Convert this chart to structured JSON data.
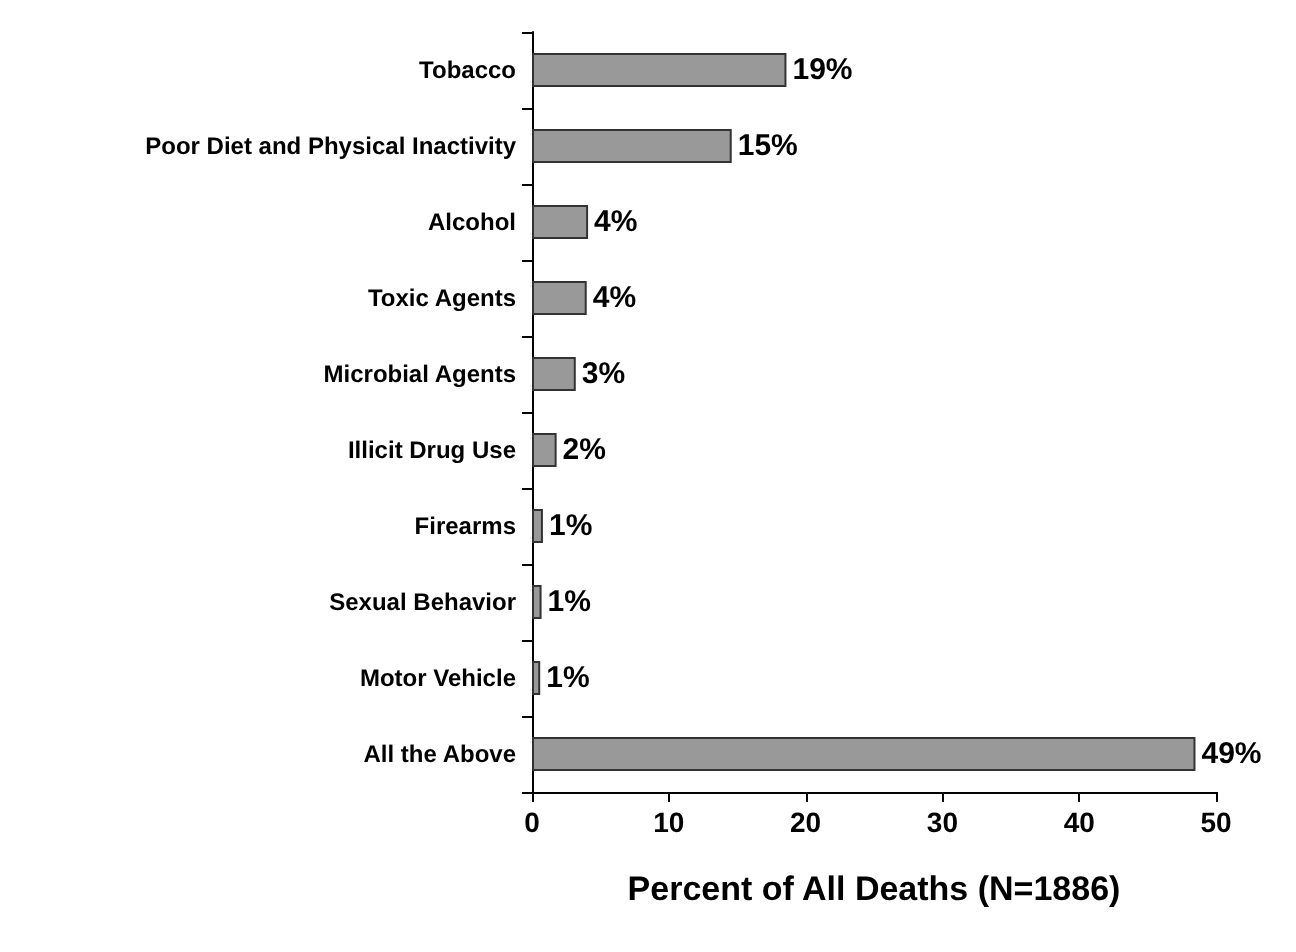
{
  "chart_data": {
    "type": "bar",
    "orientation": "horizontal",
    "xlabel": "Percent of All Deaths (N=1886)",
    "categories": [
      "Tobacco",
      "Poor Diet and Physical Inactivity",
      "Alcohol",
      "Toxic Agents",
      "Microbial Agents",
      "Illicit Drug Use",
      "Firearms",
      "Sexual Behavior",
      "Motor Vehicle",
      "All the Above"
    ],
    "values": [
      18.6,
      14.6,
      4.1,
      4.0,
      3.2,
      1.8,
      0.8,
      0.7,
      0.6,
      48.5
    ],
    "value_labels": [
      "19%",
      "15%",
      "4%",
      "4%",
      "3%",
      "2%",
      "1%",
      "1%",
      "1%",
      "49%"
    ],
    "color": "#999999",
    "xlim": [
      0,
      50
    ],
    "xticks": [
      0,
      10,
      20,
      30,
      40,
      50
    ]
  }
}
